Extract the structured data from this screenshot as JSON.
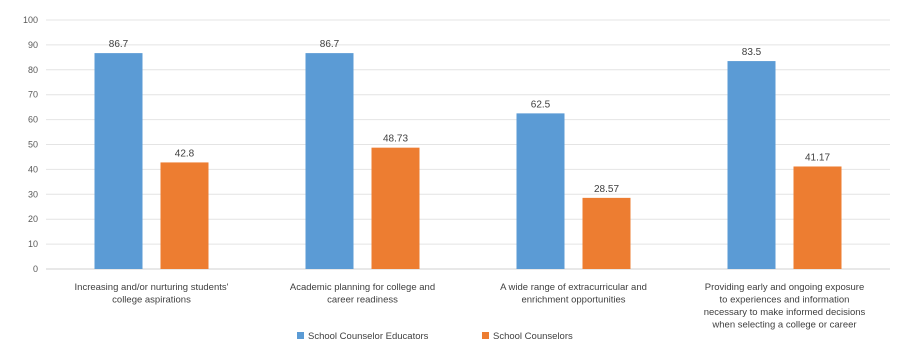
{
  "chart_data": {
    "type": "bar",
    "categories": [
      [
        "Increasing and/or nurturing students'",
        "college aspirations"
      ],
      [
        "Academic planning for college and",
        "career readiness"
      ],
      [
        "A wide range of extracurricular and",
        "enrichment opportunities"
      ],
      [
        "Providing early and ongoing exposure",
        "to experiences and information",
        "necessary to make informed decisions",
        "when selecting a college or career"
      ]
    ],
    "series": [
      {
        "name": "School Counselor Educators",
        "color": "#5B9BD5",
        "values": [
          86.7,
          86.7,
          62.5,
          83.5
        ],
        "labels": [
          "86.7",
          "86.7",
          "62.5",
          "83.5"
        ]
      },
      {
        "name": "School Counselors",
        "color": "#ED7D31",
        "values": [
          42.8,
          48.73,
          28.57,
          41.17
        ],
        "labels": [
          "42.8",
          "48.73",
          "28.57",
          "41.17"
        ]
      }
    ],
    "ylim": [
      0,
      100
    ],
    "yticks": [
      0,
      10,
      20,
      30,
      40,
      50,
      60,
      70,
      80,
      90,
      100
    ],
    "grid": true,
    "legend_position": "bottom"
  }
}
